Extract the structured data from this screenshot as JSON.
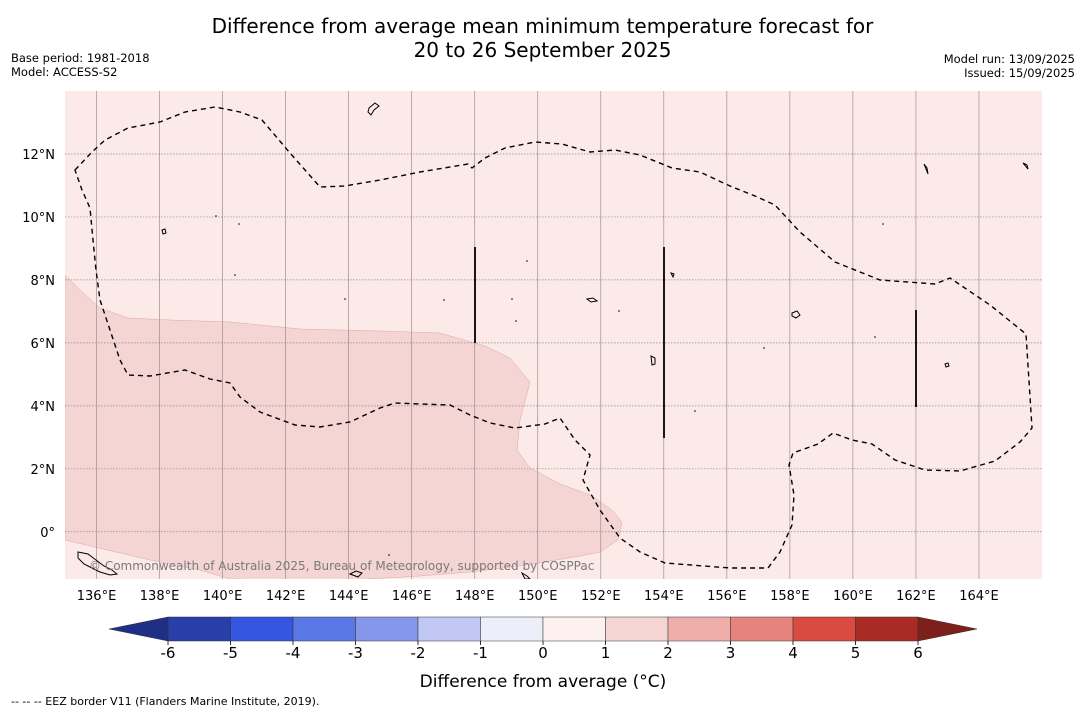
{
  "header": {
    "title_line1": "Difference from average mean minimum temperature forecast for",
    "title_line2": "20 to 26 September 2025",
    "base_period": "Base period: 1981-2018",
    "model": "Model: ACCESS-S2",
    "model_run": "Model run: 13/09/2025",
    "issued": "Issued: 15/09/2025"
  },
  "map": {
    "lon_range": [
      135,
      166
    ],
    "lat_range": [
      -1.5,
      14
    ],
    "lon_ticks": [
      "136°E",
      "138°E",
      "140°E",
      "142°E",
      "144°E",
      "146°E",
      "148°E",
      "150°E",
      "152°E",
      "154°E",
      "156°E",
      "158°E",
      "160°E",
      "162°E",
      "164°E"
    ],
    "lon_values": [
      136,
      138,
      140,
      142,
      144,
      146,
      148,
      150,
      152,
      154,
      156,
      158,
      160,
      162,
      164
    ],
    "lat_ticks": [
      "12°N",
      "10°N",
      "8°N",
      "6°N",
      "4°N",
      "2°N",
      "0°"
    ],
    "lat_values": [
      12,
      10,
      8,
      6,
      4,
      2,
      0
    ],
    "background_class_color": "#fceae9",
    "warmer_class_color": "#f5d5d4",
    "copyright": "© Commonwealth of Australia 2025, Bureau of Meteorology, supported by COSPPac"
  },
  "colorbar": {
    "title": "Difference from average (°C)",
    "ticks": [
      "-6",
      "-5",
      "-4",
      "-3",
      "-2",
      "-1",
      "0",
      "1",
      "2",
      "3",
      "4",
      "5",
      "6"
    ],
    "colors": [
      "#283ea8",
      "#3556e0",
      "#5a77e6",
      "#8597eb",
      "#c1c8f3",
      "#eceef9",
      "#fdf0f0",
      "#f5d5d4",
      "#eeaeaa",
      "#e6837d",
      "#d94a40",
      "#aa2a25"
    ],
    "under_color": "#1e2f85",
    "over_color": "#7d1f1a"
  },
  "legend": {
    "eez_note": "--  --  -- EEZ border V11 (Flanders Marine Institute, 2019)."
  }
}
